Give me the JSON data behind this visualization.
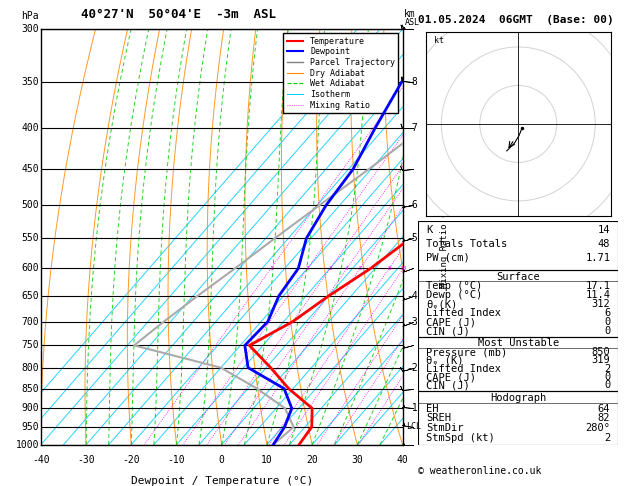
{
  "title_left": "40°27'N  50°04'E  -3m  ASL",
  "date_title": "01.05.2024  06GMT  (Base: 00)",
  "xlabel": "Dewpoint / Temperature (°C)",
  "pressure_levels": [
    300,
    350,
    400,
    450,
    500,
    550,
    600,
    650,
    700,
    750,
    800,
    850,
    900,
    950,
    1000
  ],
  "temp_C": [
    -8.5,
    -5.0,
    -0.5,
    4.5,
    5.0,
    2.0,
    -1.0,
    -5.0,
    -8.0,
    -13.0,
    -4.0,
    4.0,
    13.0,
    16.5,
    17.1
  ],
  "dewp_C": [
    -33.0,
    -30.0,
    -27.0,
    -24.0,
    -23.0,
    -21.0,
    -17.0,
    -16.0,
    -13.5,
    -14.0,
    -9.0,
    3.0,
    8.5,
    10.5,
    11.4
  ],
  "parcel_C": [
    -8.5,
    -12.0,
    -16.5,
    -20.5,
    -24.5,
    -28.0,
    -31.0,
    -34.0,
    -36.5,
    -38.5,
    -15.0,
    -3.0,
    7.0,
    12.5,
    11.4
  ],
  "x_range": [
    -40,
    40
  ],
  "skew_factor": 45,
  "mixing_ratio_values": [
    1,
    2,
    3,
    4,
    5,
    8,
    10,
    16,
    20,
    28
  ],
  "mixing_ratio_color": "#ff00ff",
  "isotherm_color": "#00ccff",
  "dry_adiabat_color": "#ff8800",
  "wet_adiabat_color": "#00cc00",
  "temp_color": "#ff0000",
  "dewp_color": "#0000ff",
  "parcel_color": "#aaaaaa",
  "lcl_pressure": 950,
  "km_ticks": {
    "300": "",
    "350": "8",
    "400": "7",
    "450": "",
    "500": "6",
    "550": "5",
    "600": "",
    "650": "4",
    "700": "3",
    "750": "",
    "800": "2",
    "850": "",
    "900": "1",
    "950": "",
    "1000": ""
  },
  "right_panel": {
    "K": 14,
    "Totals_Totals": 48,
    "PW_cm": 1.71,
    "Temp_C": 17.1,
    "Dewp_C": 11.4,
    "theta_e_K": 312,
    "Lifted_Index": 6,
    "CAPE_J": 0,
    "CIN_J": 0,
    "MU_Pressure_mb": 850,
    "MU_theta_e_K": 319,
    "MU_Lifted_Index": 2,
    "MU_CAPE_J": 0,
    "MU_CIN_J": 0,
    "EH": 64,
    "SREH": 82,
    "StmDir_deg": 280,
    "StmSpd_kt": 2
  },
  "copyright": "© weatheronline.co.uk",
  "wind_data": [
    [
      300,
      270,
      25
    ],
    [
      350,
      275,
      20
    ],
    [
      400,
      270,
      15
    ],
    [
      450,
      265,
      10
    ],
    [
      500,
      260,
      5
    ],
    [
      550,
      255,
      5
    ],
    [
      600,
      250,
      5
    ],
    [
      650,
      250,
      5
    ],
    [
      700,
      250,
      5
    ],
    [
      750,
      255,
      5
    ],
    [
      800,
      255,
      10
    ],
    [
      850,
      265,
      10
    ],
    [
      900,
      275,
      5
    ],
    [
      950,
      280,
      5
    ],
    [
      1000,
      270,
      5
    ]
  ]
}
